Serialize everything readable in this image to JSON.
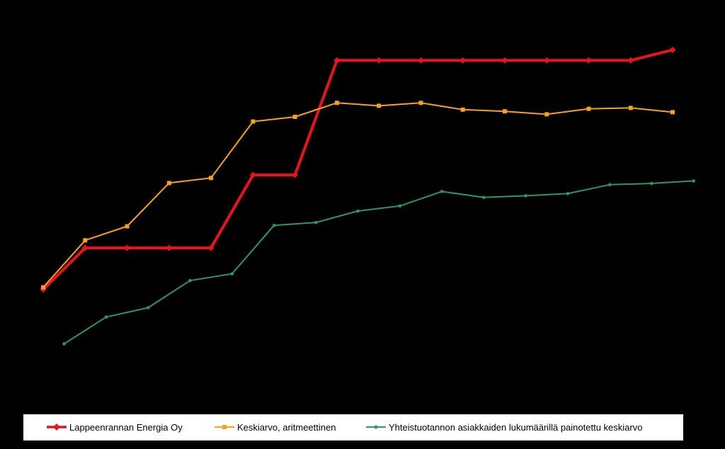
{
  "colors": {
    "background": "#000000",
    "legend_background": "#ffffff",
    "series_red": "#e8141b",
    "series_orange": "#f7a11f",
    "series_green": "#2e9660"
  },
  "chart_data": {
    "type": "line",
    "title": "",
    "xlabel": "",
    "ylabel": "",
    "x": [
      1,
      2,
      3,
      4,
      5,
      6,
      7,
      8,
      9,
      10,
      11,
      12,
      13,
      14,
      15,
      16
    ],
    "ylim": [
      0,
      10
    ],
    "grid": false,
    "legend_position": "bottom",
    "series": [
      {
        "name": "Lappeenrannan Energia Oy",
        "color": "#e8141b",
        "marker": "diamond",
        "values": [
          3.86,
          4.84,
          4.84,
          4.84,
          4.84,
          6.56,
          6.56,
          9.26,
          9.26,
          9.26,
          9.26,
          9.26,
          9.26,
          9.26,
          9.26,
          9.51
        ]
      },
      {
        "name": "Keskiarvo, aritmeettinen",
        "color": "#f7a11f",
        "marker": "square",
        "values": [
          3.91,
          5.02,
          5.35,
          6.37,
          6.49,
          7.82,
          7.93,
          8.26,
          8.19,
          8.26,
          8.1,
          8.06,
          7.99,
          8.12,
          8.14,
          8.04
        ]
      },
      {
        "name": "Yhteistuotannon asiakkaiden lukumäärillä painotettu keskiarvo",
        "color": "#2e9660",
        "marker": "dot",
        "x_start": 1.5,
        "values": [
          2.58,
          3.21,
          3.43,
          4.07,
          4.23,
          5.37,
          5.44,
          5.71,
          5.83,
          6.17,
          6.03,
          6.07,
          6.12,
          6.33,
          6.36,
          6.42
        ]
      }
    ]
  }
}
